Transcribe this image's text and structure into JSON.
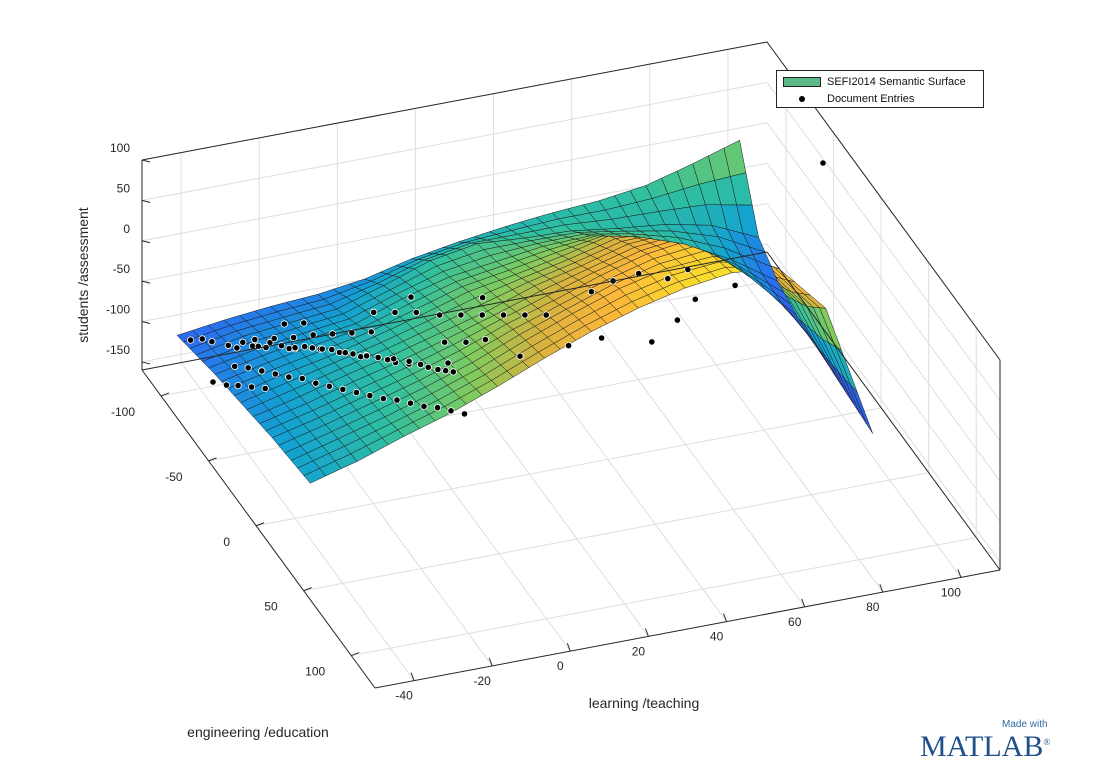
{
  "chart_data": {
    "type": "surface3d",
    "title": "",
    "xlabel": "learning /teaching",
    "ylabel": "engineering /education",
    "zlabel": "students /assessment",
    "xlim": [
      -50,
      110
    ],
    "ylim": [
      -120,
      125
    ],
    "zlim": [
      -160,
      100
    ],
    "x_ticks": [
      -40,
      -20,
      0,
      20,
      40,
      60,
      80,
      100
    ],
    "y_ticks": [
      -100,
      -50,
      0,
      50,
      100
    ],
    "z_ticks": [
      100,
      50,
      0,
      -50,
      -100,
      -150
    ],
    "grid": true,
    "legend_placement": "top-right",
    "series": [
      {
        "name": "SEFI2014 Semantic Surface",
        "kind": "surface",
        "grid_x": [
          -42,
          -30,
          -18,
          -6,
          6,
          18,
          30,
          42,
          54,
          66,
          78,
          90,
          102
        ],
        "grid_y": [
          -116,
          -96,
          -76,
          -56,
          -36,
          -16,
          4,
          24
        ],
        "z": [
          [
            -118,
            -110,
            -104,
            -100,
            -92,
            -78,
            -68,
            -60,
            -54,
            -50,
            -42,
            -26,
            -8
          ],
          [
            -110,
            -98,
            -92,
            -86,
            -68,
            -48,
            -38,
            -42,
            -44,
            -52,
            -58,
            -70,
            -96
          ],
          [
            -102,
            -90,
            -80,
            -72,
            -52,
            -36,
            -28,
            -20,
            -18,
            -30,
            -50,
            -80,
            -118
          ],
          [
            -96,
            -82,
            -70,
            -56,
            -40,
            -22,
            -12,
            0,
            14,
            10,
            -20,
            -70,
            -128
          ],
          [
            -90,
            -76,
            -60,
            -46,
            -30,
            -14,
            6,
            20,
            36,
            40,
            10,
            -50,
            -132
          ],
          [
            -84,
            -70,
            -54,
            -38,
            -20,
            2,
            20,
            40,
            56,
            64,
            34,
            -30,
            -138
          ],
          [
            -80,
            -64,
            -48,
            -30,
            -10,
            14,
            36,
            56,
            70,
            74,
            56,
            -10,
            -142
          ],
          [
            -76,
            -60,
            -40,
            -22,
            0,
            24,
            46,
            64,
            78,
            86,
            80,
            20,
            -146
          ]
        ]
      },
      {
        "name": "Document Entries",
        "kind": "scatter",
        "points": [
          [
            -40,
            -110,
            -116
          ],
          [
            -38,
            -106,
            -110
          ],
          [
            -36,
            -104,
            -112
          ],
          [
            -34,
            -95,
            -104
          ],
          [
            -33,
            -90,
            -100
          ],
          [
            -31,
            -92,
            -98
          ],
          [
            -30,
            -86,
            -94
          ],
          [
            -29,
            -84,
            -92
          ],
          [
            -28,
            -80,
            -88
          ],
          [
            -26,
            -84,
            -90
          ],
          [
            -25,
            -76,
            -82
          ],
          [
            -24,
            -72,
            -80
          ],
          [
            -23,
            -70,
            -78
          ],
          [
            -22,
            -74,
            -84
          ],
          [
            -21,
            -68,
            -74
          ],
          [
            -20,
            -64,
            -70
          ],
          [
            -19,
            -60,
            -66
          ],
          [
            -18,
            -62,
            -70
          ],
          [
            -17,
            -56,
            -62
          ],
          [
            -16,
            -52,
            -60
          ],
          [
            -15,
            -50,
            -58
          ],
          [
            -14,
            -46,
            -54
          ],
          [
            -13,
            -42,
            -52
          ],
          [
            -12,
            -40,
            -48
          ],
          [
            -11,
            -44,
            -56
          ],
          [
            -10,
            -36,
            -46
          ],
          [
            -9,
            -30,
            -40
          ],
          [
            -8,
            -26,
            -38
          ],
          [
            -7,
            -32,
            -44
          ],
          [
            -6,
            -20,
            -32
          ],
          [
            -5,
            -24,
            -36
          ],
          [
            -4,
            -16,
            -28
          ],
          [
            -3,
            -12,
            -26
          ],
          [
            -2,
            -6,
            -20
          ],
          [
            -1,
            -2,
            -16
          ],
          [
            0,
            2,
            -12
          ],
          [
            -36,
            -80,
            -104
          ],
          [
            -34,
            -74,
            -98
          ],
          [
            -32,
            -68,
            -94
          ],
          [
            -30,
            -62,
            -90
          ],
          [
            -28,
            -56,
            -86
          ],
          [
            -26,
            -50,
            -80
          ],
          [
            -24,
            -44,
            -78
          ],
          [
            -22,
            -38,
            -74
          ],
          [
            -20,
            -32,
            -70
          ],
          [
            -18,
            -26,
            -66
          ],
          [
            -16,
            -20,
            -62
          ],
          [
            -14,
            -14,
            -58
          ],
          [
            -12,
            -8,
            -52
          ],
          [
            -10,
            -2,
            -48
          ],
          [
            -8,
            4,
            -44
          ],
          [
            -6,
            10,
            -38
          ],
          [
            -4,
            16,
            -34
          ],
          [
            -2,
            22,
            -30
          ],
          [
            2,
            -90,
            -88
          ],
          [
            6,
            -84,
            -82
          ],
          [
            10,
            -78,
            -76
          ],
          [
            14,
            -70,
            -70
          ],
          [
            18,
            -64,
            -64
          ],
          [
            22,
            -58,
            -58
          ],
          [
            26,
            -52,
            -52
          ],
          [
            30,
            -46,
            -46
          ],
          [
            34,
            -40,
            -40
          ],
          [
            -26,
            -100,
            -112
          ],
          [
            -22,
            -96,
            -108
          ],
          [
            -18,
            -92,
            -104
          ],
          [
            -14,
            -88,
            -98
          ],
          [
            -10,
            -84,
            -94
          ],
          [
            -6,
            -80,
            -90
          ],
          [
            -2,
            -76,
            -86
          ],
          [
            -40,
            -60,
            -92
          ],
          [
            -38,
            -54,
            -86
          ],
          [
            -36,
            -48,
            -80
          ],
          [
            -44,
            -70,
            -100
          ],
          [
            -42,
            -64,
            -96
          ],
          [
            8,
            -40,
            -50
          ],
          [
            12,
            -34,
            -44
          ],
          [
            16,
            -30,
            -38
          ],
          [
            4,
            -20,
            -40
          ],
          [
            20,
            -10,
            -30
          ],
          [
            30,
            0,
            -10
          ],
          [
            36,
            10,
            10
          ],
          [
            44,
            30,
            30
          ],
          [
            52,
            24,
            40
          ],
          [
            60,
            10,
            36
          ],
          [
            70,
            -60,
            -60
          ],
          [
            80,
            -80,
            -90
          ],
          [
            96,
            -96,
            -150
          ],
          [
            100,
            -20,
            120
          ],
          [
            48,
            -50,
            -40
          ],
          [
            56,
            -60,
            -50
          ],
          [
            64,
            -66,
            -58
          ],
          [
            26,
            -74,
            -66
          ],
          [
            14,
            -100,
            -96
          ],
          [
            -16,
            -110,
            -118
          ],
          [
            -12,
            -106,
            -114
          ]
        ]
      }
    ]
  },
  "legend": {
    "surface_label": "SEFI2014 Semantic Surface",
    "points_label": "Document Entries"
  },
  "branding": {
    "made_with": "Made with",
    "logo_text": "MATLAB",
    "logo_mark": "®"
  },
  "colors": {
    "colormap": [
      "#3e26a8",
      "#2a6ff0",
      "#13a2d1",
      "#2fbfa0",
      "#7fcb5f",
      "#d6b33f",
      "#fbb63a",
      "#f9e32a"
    ]
  }
}
